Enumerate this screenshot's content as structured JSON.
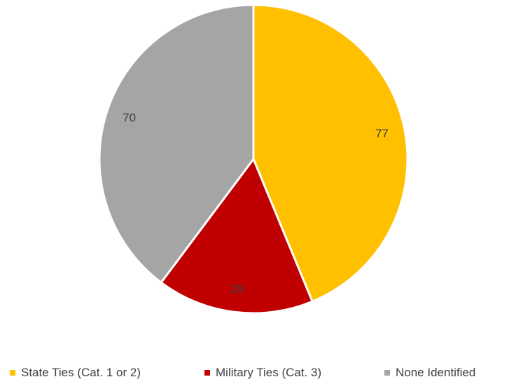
{
  "chart_data": {
    "type": "pie",
    "title": "",
    "categories": [
      "State Ties (Cat. 1 or 2)",
      "Military Ties (Cat. 3)",
      "None Identified"
    ],
    "values": [
      77,
      29,
      70
    ],
    "colors": [
      "#FFC000",
      "#C00000",
      "#A5A5A5"
    ],
    "data_labels": [
      "77",
      "29",
      "70"
    ],
    "start_angle": "12 o'clock",
    "direction": "clockwise",
    "legend_position": "bottom"
  },
  "legend": {
    "items": [
      {
        "label": "State Ties (Cat. 1 or 2)",
        "color": "#FFC000"
      },
      {
        "label": "Military Ties (Cat. 3)",
        "color": "#C00000"
      },
      {
        "label": "None Identified",
        "color": "#A5A5A5"
      }
    ]
  }
}
